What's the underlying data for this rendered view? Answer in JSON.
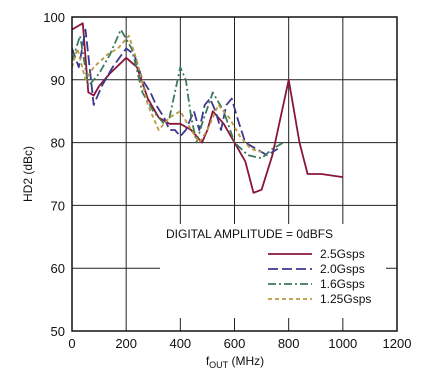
{
  "chart_data": {
    "type": "line",
    "title": "",
    "xlabel": "f",
    "xlabel_sub": "OUT",
    "xlabel_unit": " (MHz)",
    "ylabel": "HD2 (dBc)",
    "xlim": [
      0,
      1200
    ],
    "ylim": [
      50,
      100
    ],
    "x_ticks": [
      0,
      200,
      400,
      600,
      800,
      1000,
      1200
    ],
    "y_ticks": [
      50,
      60,
      70,
      80,
      90,
      100
    ],
    "grid": true,
    "legend_title": "DIGITAL AMPLITUDE = 0dBFS",
    "legend_position": "bottom-right",
    "series": [
      {
        "name": "2.5Gsps",
        "color": "#8b1538",
        "dash": "solid",
        "points": [
          [
            0,
            98
          ],
          [
            20,
            98.5
          ],
          [
            40,
            99
          ],
          [
            60,
            88
          ],
          [
            80,
            87.5
          ],
          [
            100,
            89
          ],
          [
            140,
            91
          ],
          [
            200,
            93.5
          ],
          [
            240,
            92
          ],
          [
            280,
            87
          ],
          [
            320,
            84
          ],
          [
            360,
            83
          ],
          [
            400,
            83
          ],
          [
            440,
            82
          ],
          [
            480,
            80
          ],
          [
            500,
            82
          ],
          [
            520,
            85
          ],
          [
            560,
            83
          ],
          [
            600,
            80
          ],
          [
            640,
            77
          ],
          [
            670,
            72
          ],
          [
            700,
            72.5
          ],
          [
            740,
            78
          ],
          [
            780,
            86
          ],
          [
            800,
            90
          ],
          [
            840,
            80
          ],
          [
            870,
            75
          ],
          [
            920,
            75
          ],
          [
            1000,
            74.5
          ]
        ]
      },
      {
        "name": "2.0Gsps",
        "color": "#3b3a8f",
        "dash": "longdash",
        "points": [
          [
            0,
            95
          ],
          [
            25,
            92
          ],
          [
            50,
            98
          ],
          [
            80,
            86
          ],
          [
            110,
            89
          ],
          [
            150,
            92
          ],
          [
            200,
            95
          ],
          [
            230,
            94
          ],
          [
            260,
            90
          ],
          [
            290,
            88
          ],
          [
            310,
            86
          ],
          [
            340,
            84
          ],
          [
            360,
            82
          ],
          [
            380,
            82
          ],
          [
            400,
            81
          ],
          [
            420,
            82
          ],
          [
            450,
            85
          ],
          [
            470,
            82
          ],
          [
            490,
            86
          ],
          [
            510,
            87
          ],
          [
            530,
            85
          ],
          [
            550,
            82
          ],
          [
            570,
            86
          ],
          [
            590,
            87
          ],
          [
            610,
            84
          ],
          [
            640,
            80
          ],
          [
            680,
            79
          ],
          [
            720,
            78
          ],
          [
            760,
            79
          ]
        ]
      },
      {
        "name": "1.6Gsps",
        "color": "#3d7a5a",
        "dash": "dashdot",
        "points": [
          [
            0,
            93
          ],
          [
            30,
            97
          ],
          [
            60,
            89
          ],
          [
            100,
            91
          ],
          [
            140,
            94
          ],
          [
            180,
            98
          ],
          [
            220,
            95
          ],
          [
            260,
            88
          ],
          [
            300,
            85
          ],
          [
            340,
            83
          ],
          [
            360,
            84
          ],
          [
            380,
            88
          ],
          [
            400,
            92
          ],
          [
            420,
            90
          ],
          [
            440,
            84
          ],
          [
            460,
            80
          ],
          [
            480,
            83
          ],
          [
            520,
            88
          ],
          [
            560,
            85
          ],
          [
            600,
            80
          ],
          [
            650,
            78
          ],
          [
            700,
            77.5
          ],
          [
            740,
            79
          ],
          [
            780,
            80
          ]
        ]
      },
      {
        "name": "1.25Gsps",
        "color": "#b89a40",
        "dash": "shortdash",
        "points": [
          [
            0,
            92
          ],
          [
            20,
            95
          ],
          [
            50,
            90
          ],
          [
            80,
            92
          ],
          [
            130,
            94
          ],
          [
            170,
            95
          ],
          [
            210,
            97
          ],
          [
            240,
            93
          ],
          [
            280,
            86
          ],
          [
            320,
            82
          ],
          [
            360,
            84
          ],
          [
            400,
            85
          ],
          [
            440,
            82
          ],
          [
            470,
            80
          ],
          [
            500,
            82
          ],
          [
            540,
            86
          ],
          [
            580,
            84
          ],
          [
            620,
            81
          ],
          [
            660,
            79
          ],
          [
            700,
            78.5
          ]
        ]
      }
    ]
  }
}
